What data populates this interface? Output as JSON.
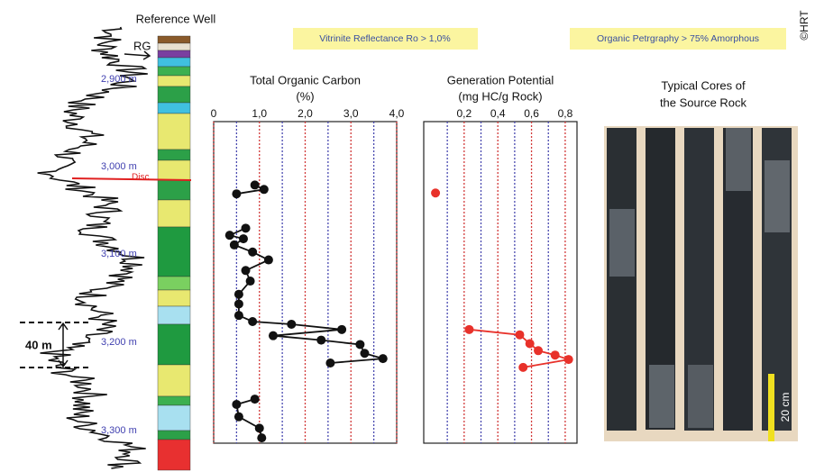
{
  "copyright": "©HRT",
  "well": {
    "title": "Reference Well",
    "marker": "RG",
    "depths": [
      "2,900 m",
      "3,000 m",
      "3,100 m",
      "3,200 m",
      "3,300 m"
    ],
    "disc": "Disc",
    "scale": "40 m"
  },
  "notes": [
    "Vitrinite Reflectance Ro > 1,0%",
    "Organic Petrgraphy > 75% Amorphous"
  ],
  "cores": {
    "title": [
      "Typical Cores of",
      "the Source Rock"
    ],
    "scale": "20 cm"
  },
  "chart_data": [
    {
      "type": "line",
      "title": "Total Organic Carbon",
      "subtitle": "(%)",
      "color": "#111",
      "x": [
        0.9,
        1.1,
        0.5,
        null,
        0.7,
        0.35,
        0.65,
        0.45,
        0.85,
        1.2,
        0.7,
        0.8,
        0.55,
        0.55,
        0.55,
        0.85,
        1.7,
        2.8,
        1.3,
        2.35,
        3.2,
        3.3,
        3.7,
        2.55,
        null,
        0.9,
        0.5,
        0.55,
        1.0,
        1.05
      ],
      "y": [
        3021,
        3026,
        3031,
        null,
        3070,
        3078,
        3082,
        3089,
        3097,
        3106,
        3118,
        3130,
        3145,
        3156,
        3169,
        3176,
        3179,
        3185,
        3192,
        3197,
        3202,
        3212,
        3218,
        3223,
        null,
        3264,
        3270,
        3284,
        3297,
        3308
      ],
      "xlim": [
        0,
        4
      ],
      "xticks": [
        0,
        {
          "value": 1,
          "label": "1,0"
        },
        {
          "value": 2,
          "label": "2,0"
        },
        {
          "value": 3,
          "label": "3,0"
        },
        {
          "value": 4,
          "label": "4,0"
        }
      ],
      "minor_xticks": [
        0.5,
        1.5,
        2.5,
        3.5
      ],
      "ylim": [
        2949,
        3314
      ],
      "y_reversed": true,
      "grid": true,
      "grid_color": "#d23a3a",
      "minor_grid_color": "#4a4ab0"
    },
    {
      "type": "line",
      "title": "Generation Potential",
      "subtitle": "(mg HC/g Rock)",
      "color": "#e8312a",
      "x": [
        0.03,
        null,
        0.23,
        0.53,
        0.59,
        0.64,
        0.74,
        0.82,
        0.55
      ],
      "y": [
        3030,
        null,
        3185,
        3191,
        3201,
        3209,
        3214,
        3219,
        3228
      ],
      "xlim": [
        -0.04,
        0.87
      ],
      "xticks": [
        {
          "value": 0.2,
          "label": "0,2"
        },
        {
          "value": 0.4,
          "label": "0,4"
        },
        {
          "value": 0.6,
          "label": "0,6"
        },
        {
          "value": 0.8,
          "label": "0,8"
        }
      ],
      "minor_xticks": [
        0.1,
        0.3,
        0.5,
        0.7
      ],
      "ylim": [
        2949,
        3314
      ],
      "y_reversed": true,
      "grid": true,
      "grid_color": "#d23a3a",
      "minor_grid_color": "#4a4ab0"
    }
  ]
}
